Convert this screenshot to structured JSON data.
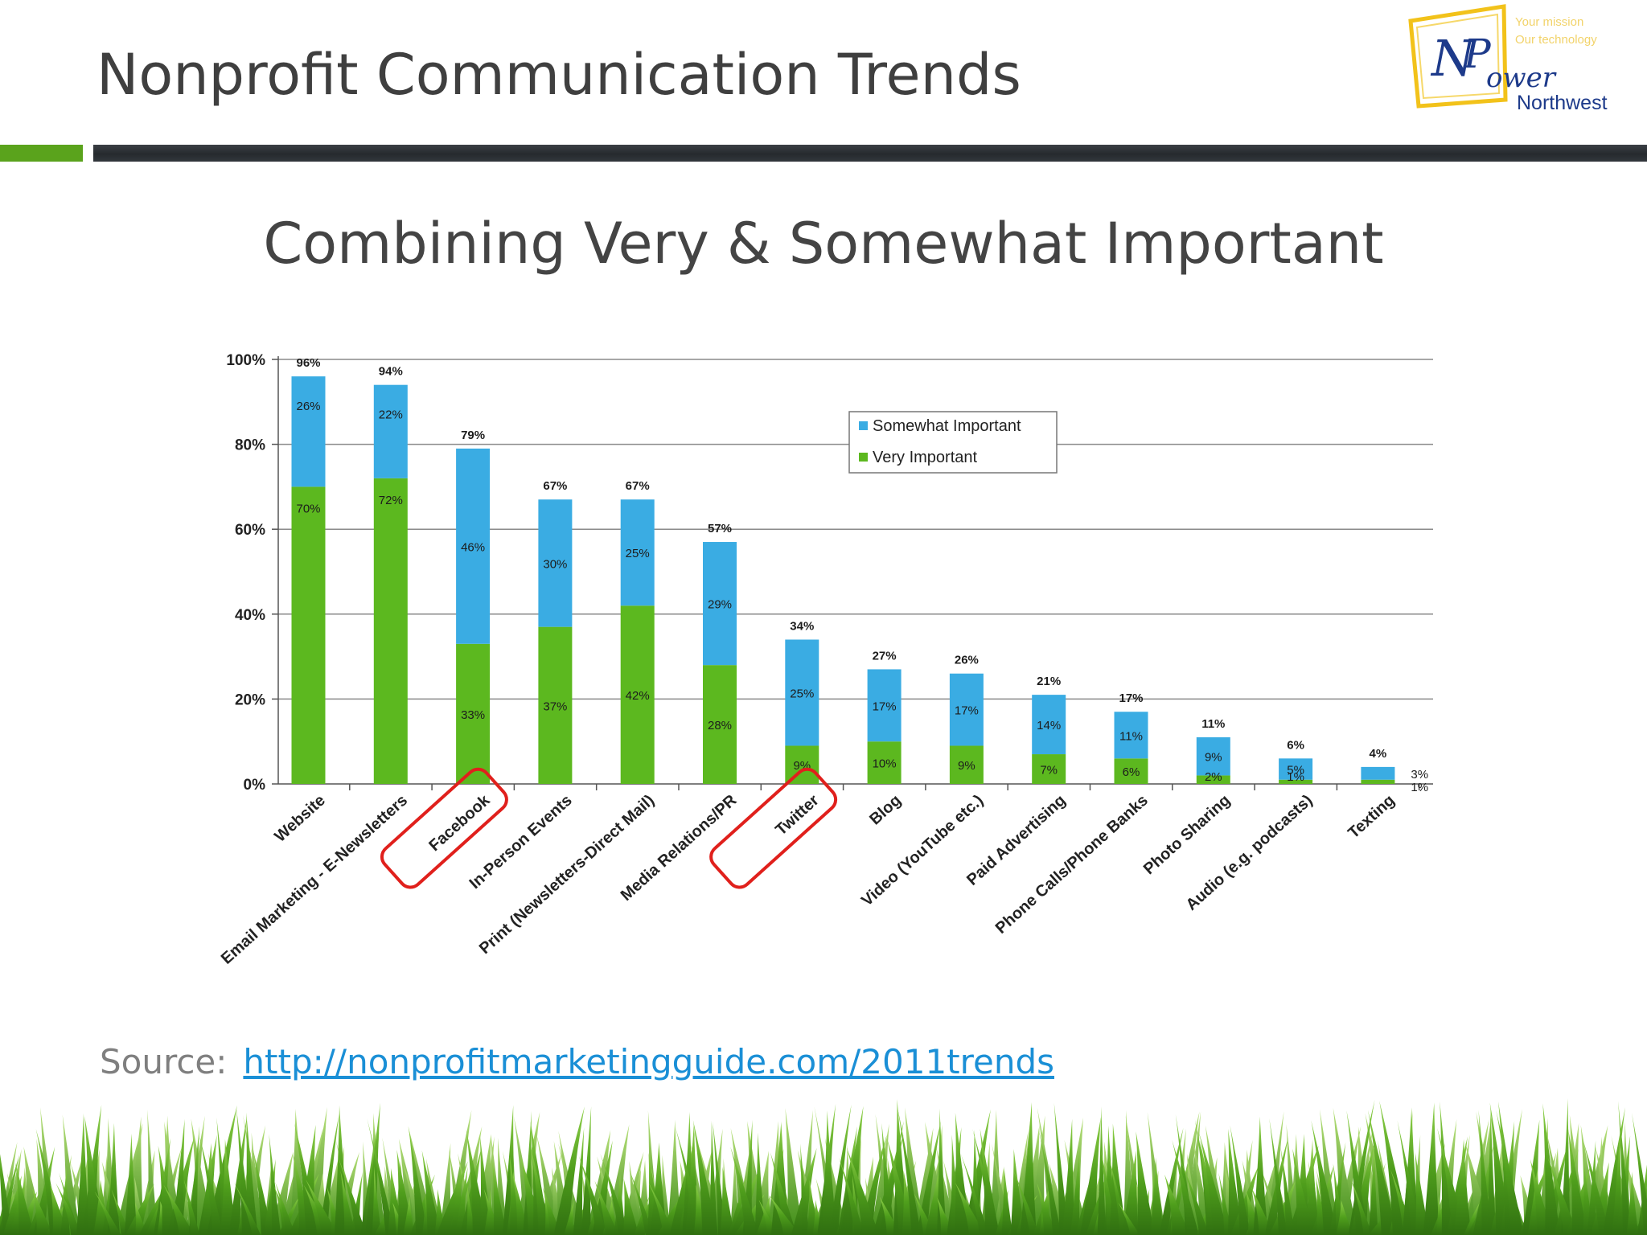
{
  "slide": {
    "title": "Nonprofit Communication Trends",
    "subtitle": "Combining Very & Somewhat Important",
    "source_label": "Source:",
    "source_link": "http://nonprofitmarketingguide.com/2011trends"
  },
  "logo": {
    "letters_n": "N",
    "letters_p": "P",
    "word": "ower",
    "region": "Northwest",
    "tagline_1": "Your mission",
    "tagline_2": "Our technology"
  },
  "colors": {
    "very": "#5cb81f",
    "somewhat": "#3aace3",
    "highlight": "#e0201c",
    "accent_green": "#5aa31c"
  },
  "chart_data": {
    "type": "bar",
    "stacked": true,
    "categories": [
      "Website",
      "Email Marketing - E-Newsletters",
      "Facebook",
      "In-Person Events",
      "Print (Newsletters-Direct Mail)",
      "Media Relations/PR",
      "Twitter",
      "Blog",
      "Video (YouTube etc.)",
      "Paid Advertising",
      "Phone Calls/Phone Banks",
      "Photo Sharing",
      "Audio (e.g. podcasts)",
      "Texting"
    ],
    "series": [
      {
        "name": "Very Important",
        "values": [
          70,
          72,
          33,
          37,
          42,
          28,
          9,
          10,
          9,
          7,
          6,
          2,
          1,
          1
        ]
      },
      {
        "name": "Somewhat Important",
        "values": [
          26,
          22,
          46,
          30,
          25,
          29,
          25,
          17,
          17,
          14,
          11,
          9,
          5,
          3
        ]
      }
    ],
    "totals": [
      96,
      94,
      79,
      67,
      67,
      57,
      34,
      27,
      26,
      21,
      17,
      11,
      6,
      4
    ],
    "series_labels": {
      "very": [
        "70%",
        "72%",
        "33%",
        "37%",
        "42%",
        "28%",
        "9%",
        "10%",
        "9%",
        "7%",
        "6%",
        "2%",
        "1%",
        "1%"
      ],
      "somewhat": [
        "26%",
        "22%",
        "46%",
        "30%",
        "25%",
        "29%",
        "25%",
        "17%",
        "17%",
        "14%",
        "11%",
        "9%",
        "5%",
        "3%"
      ]
    },
    "total_labels": [
      "96%",
      "94%",
      "79%",
      "67%",
      "67%",
      "57%",
      "34%",
      "27%",
      "26%",
      "21%",
      "17%",
      "11%",
      "6%",
      "4%"
    ],
    "y_ticks": [
      "0%",
      "20%",
      "40%",
      "60%",
      "80%",
      "100%"
    ],
    "ylim": [
      0,
      100
    ],
    "grid": true,
    "legend": [
      "Somewhat Important",
      "Very Important"
    ],
    "legend_position": "top-right",
    "highlighted": [
      "Facebook",
      "Twitter"
    ]
  }
}
